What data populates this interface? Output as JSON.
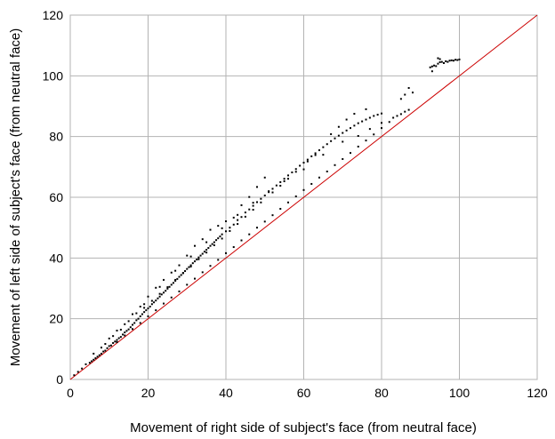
{
  "chart_data": {
    "type": "scatter",
    "title": "",
    "xlabel": "Movement of right side of subject's face (from neutral face)",
    "ylabel": "Movement of left side of subject's face (from neutral face)",
    "xlim": [
      0,
      120
    ],
    "ylim": [
      0,
      120
    ],
    "xticks": [
      0,
      20,
      40,
      60,
      80,
      100,
      120
    ],
    "yticks": [
      0,
      20,
      40,
      60,
      80,
      100,
      120
    ],
    "grid": true,
    "legend": "none",
    "series": [
      {
        "marker_color": "#000000",
        "points": [
          [
            5,
            5.5
          ],
          [
            5.5,
            6
          ],
          [
            6,
            6.5
          ],
          [
            6.5,
            7
          ],
          [
            7,
            7.5
          ],
          [
            7.5,
            8
          ],
          [
            8,
            8.5
          ],
          [
            8.5,
            9.2
          ],
          [
            9,
            9.5
          ],
          [
            9.5,
            10.3
          ],
          [
            10,
            11
          ],
          [
            10.5,
            11.2
          ],
          [
            11,
            12
          ],
          [
            11.5,
            12.5
          ],
          [
            12,
            13
          ],
          [
            12.5,
            13.6
          ],
          [
            13,
            14
          ],
          [
            13.5,
            14.8
          ],
          [
            14,
            15.5
          ],
          [
            14.5,
            16
          ],
          [
            15,
            16.5
          ],
          [
            15.5,
            17.2
          ],
          [
            16,
            18
          ],
          [
            16.5,
            18.6
          ],
          [
            17,
            19.5
          ],
          [
            17.5,
            20
          ],
          [
            18,
            20.8
          ],
          [
            18.5,
            21.5
          ],
          [
            19,
            22.2
          ],
          [
            19.5,
            22.8
          ],
          [
            20,
            23.4
          ],
          [
            20.5,
            24
          ],
          [
            21,
            24.8
          ],
          [
            21.5,
            25.4
          ],
          [
            22,
            26
          ],
          [
            22.5,
            26.7
          ],
          [
            23,
            27.3
          ],
          [
            23.5,
            28
          ],
          [
            24,
            28.6
          ],
          [
            24.5,
            29.2
          ],
          [
            25,
            29.9
          ],
          [
            25.5,
            30.5
          ],
          [
            26,
            31.2
          ],
          [
            26.5,
            31.8
          ],
          [
            27,
            32.5
          ],
          [
            27.5,
            33.1
          ],
          [
            28,
            33.8
          ],
          [
            28.5,
            34.4
          ],
          [
            29,
            35.1
          ],
          [
            29.5,
            35.7
          ],
          [
            30,
            36.4
          ],
          [
            30.5,
            37
          ],
          [
            31,
            37.6
          ],
          [
            31.5,
            38.3
          ],
          [
            32,
            38.9
          ],
          [
            32.5,
            39.5
          ],
          [
            33,
            40.2
          ],
          [
            33.5,
            40.8
          ],
          [
            34,
            41.4
          ],
          [
            34.5,
            42.1
          ],
          [
            35,
            42.7
          ],
          [
            35.5,
            43.3
          ],
          [
            36,
            44
          ],
          [
            36.5,
            44.6
          ],
          [
            37,
            45.2
          ],
          [
            37.5,
            45.9
          ],
          [
            38,
            46.5
          ],
          [
            38.5,
            47.1
          ],
          [
            39,
            47.8
          ],
          [
            40,
            48.8
          ],
          [
            41,
            50
          ],
          [
            42,
            51
          ],
          [
            43,
            52.5
          ],
          [
            44,
            53.5
          ],
          [
            45,
            55
          ],
          [
            46,
            56
          ],
          [
            47,
            57.2
          ],
          [
            48,
            58.4
          ],
          [
            49,
            59.5
          ],
          [
            50,
            60.6
          ],
          [
            51,
            61.7
          ],
          [
            52,
            62.8
          ],
          [
            53,
            63.9
          ],
          [
            54,
            65
          ],
          [
            55,
            66.1
          ],
          [
            56,
            67.2
          ],
          [
            57,
            68.2
          ],
          [
            58,
            69.3
          ],
          [
            59,
            70.4
          ],
          [
            60,
            71.4
          ],
          [
            61,
            72.4
          ],
          [
            62,
            73.5
          ],
          [
            63,
            74.5
          ],
          [
            64,
            75.5
          ],
          [
            65,
            76.5
          ],
          [
            66,
            77.5
          ],
          [
            67,
            78.5
          ],
          [
            68,
            79.4
          ],
          [
            69,
            80.3
          ],
          [
            70,
            81.2
          ],
          [
            71,
            82
          ],
          [
            72,
            82.8
          ],
          [
            73,
            83.6
          ],
          [
            74,
            84.4
          ],
          [
            75,
            85
          ],
          [
            76,
            85.6
          ],
          [
            77,
            86.2
          ],
          [
            78,
            86.8
          ],
          [
            79,
            87.2
          ],
          [
            80,
            87.6
          ],
          [
            12,
            12.3
          ],
          [
            14,
            14.5
          ],
          [
            16,
            16.6
          ],
          [
            18,
            18.6
          ],
          [
            20,
            20.8
          ],
          [
            22,
            22.8
          ],
          [
            24,
            25
          ],
          [
            26,
            27
          ],
          [
            28,
            29
          ],
          [
            30,
            31.2
          ],
          [
            32,
            33.2
          ],
          [
            34,
            35.3
          ],
          [
            36,
            37.4
          ],
          [
            38,
            39.4
          ],
          [
            40,
            41.6
          ],
          [
            42,
            43.6
          ],
          [
            44,
            45.8
          ],
          [
            46,
            47.8
          ],
          [
            48,
            50
          ],
          [
            50,
            52
          ],
          [
            52,
            54.1
          ],
          [
            54,
            56.2
          ],
          [
            56,
            58.3
          ],
          [
            58,
            60.3
          ],
          [
            60,
            62.4
          ],
          [
            62,
            64.4
          ],
          [
            64,
            66.5
          ],
          [
            66,
            68.5
          ],
          [
            68,
            70.6
          ],
          [
            70,
            72.6
          ],
          [
            72,
            74.6
          ],
          [
            74,
            76.7
          ],
          [
            76,
            78.7
          ],
          [
            78,
            80.7
          ],
          [
            80,
            82.8
          ],
          [
            82,
            84.8
          ],
          [
            84,
            86.8
          ],
          [
            86,
            88.2
          ],
          [
            87,
            88.8
          ],
          [
            85,
            87.4
          ],
          [
            19,
            24.8
          ],
          [
            23,
            30.5
          ],
          [
            27,
            35.8
          ],
          [
            31,
            40.5
          ],
          [
            35,
            45.2
          ],
          [
            39,
            49.8
          ],
          [
            43,
            54.2
          ],
          [
            47,
            58.2
          ],
          [
            51,
            62
          ],
          [
            55,
            65.3
          ],
          [
            60,
            69.2
          ],
          [
            65,
            74
          ],
          [
            70,
            78.3
          ],
          [
            74,
            80.2
          ],
          [
            77,
            82.5
          ],
          [
            80,
            84.5
          ],
          [
            83,
            86.2
          ],
          [
            85,
            92.4
          ],
          [
            86,
            93.8
          ],
          [
            87,
            96
          ],
          [
            88,
            94.5
          ],
          [
            76,
            89
          ],
          [
            73,
            87.5
          ],
          [
            71,
            85.6
          ],
          [
            69,
            83.2
          ],
          [
            67,
            80.8
          ],
          [
            50,
            66.5
          ],
          [
            48,
            63.4
          ],
          [
            46,
            60.1
          ],
          [
            44,
            57.4
          ],
          [
            42,
            53.3
          ],
          [
            40,
            52.1
          ],
          [
            38,
            50.6
          ],
          [
            36,
            49.3
          ],
          [
            34,
            46.2
          ],
          [
            32,
            44
          ],
          [
            30,
            40.8
          ],
          [
            28,
            37.6
          ],
          [
            26,
            35.2
          ],
          [
            24,
            32.8
          ],
          [
            22,
            30.2
          ],
          [
            20,
            27.3
          ],
          [
            18,
            24
          ],
          [
            16,
            21.5
          ],
          [
            14,
            18.2
          ],
          [
            12,
            16.1
          ],
          [
            10,
            13.5
          ],
          [
            8,
            10.5
          ],
          [
            6,
            8.5
          ],
          [
            4,
            5
          ],
          [
            3,
            3.6
          ],
          [
            2,
            2.5
          ],
          [
            1,
            1.4
          ],
          [
            9,
            11.7
          ],
          [
            11,
            14.3
          ],
          [
            13,
            16.4
          ],
          [
            15,
            19.2
          ],
          [
            17,
            21.8
          ],
          [
            19,
            23.6
          ],
          [
            21,
            25.9
          ],
          [
            23,
            28.2
          ],
          [
            25,
            30.4
          ],
          [
            27,
            32.8
          ],
          [
            29,
            35
          ],
          [
            31,
            37.2
          ],
          [
            33,
            39.6
          ],
          [
            35,
            41.8
          ],
          [
            37,
            44.2
          ],
          [
            39,
            46.4
          ],
          [
            41,
            48.9
          ],
          [
            43,
            51.2
          ],
          [
            45,
            53.6
          ],
          [
            47,
            55.9
          ],
          [
            49,
            58.3
          ],
          [
            52,
            61.6
          ],
          [
            54,
            63.8
          ],
          [
            56,
            66.1
          ],
          [
            58,
            68.4
          ],
          [
            61,
            71.8
          ],
          [
            63,
            73.9
          ],
          [
            92.5,
            102.8
          ],
          [
            93,
            103.1
          ],
          [
            93.5,
            103.4
          ],
          [
            94,
            103.2
          ],
          [
            94.5,
            104
          ],
          [
            95,
            104.5
          ],
          [
            95.5,
            104.6
          ],
          [
            96,
            104.2
          ],
          [
            96.5,
            104.8
          ],
          [
            97,
            104.6
          ],
          [
            97.5,
            105
          ],
          [
            98,
            105.1
          ],
          [
            98.5,
            105
          ],
          [
            99,
            105.3
          ],
          [
            99.5,
            105.2
          ],
          [
            100,
            105.4
          ],
          [
            95,
            105.5
          ],
          [
            94.5,
            105.8
          ],
          [
            93,
            101.5
          ]
        ]
      }
    ],
    "reference_line": {
      "from": [
        0,
        0
      ],
      "to": [
        120,
        120
      ],
      "color": "#cc0000"
    }
  }
}
